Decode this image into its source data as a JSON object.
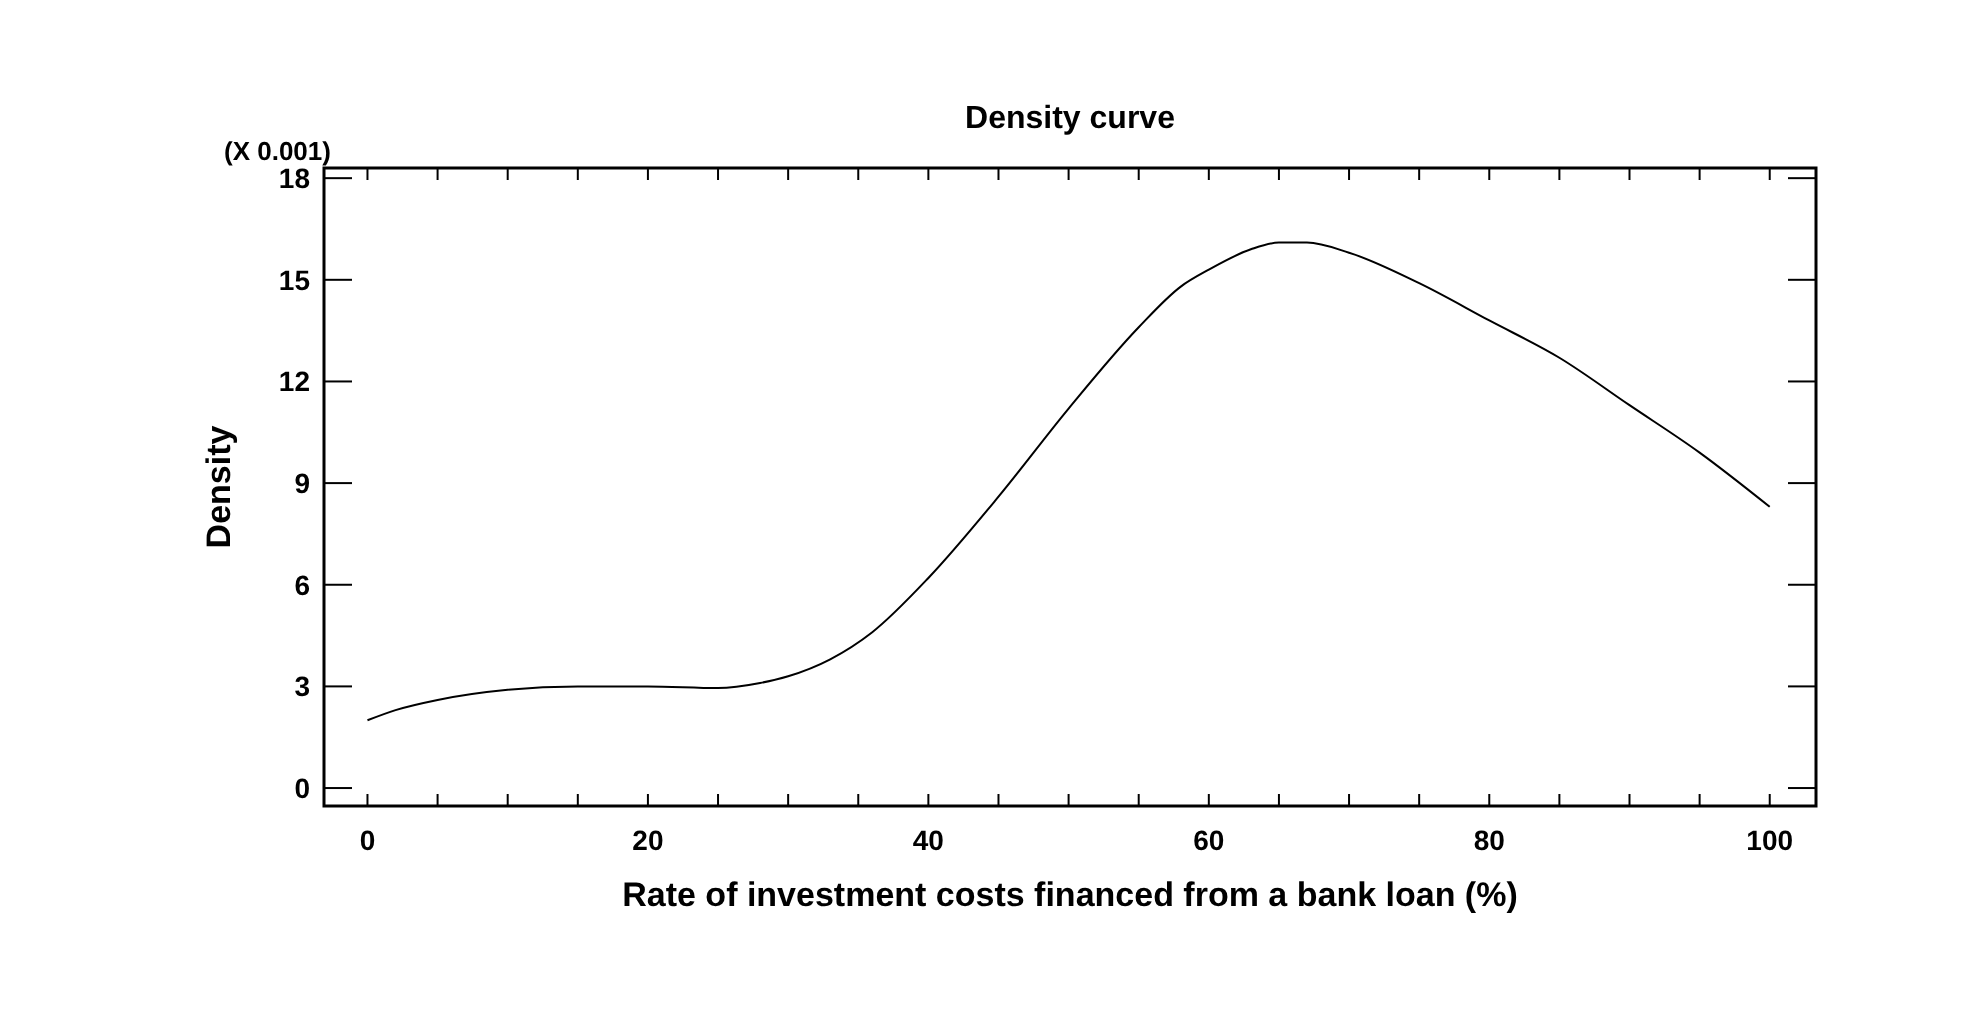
{
  "chart_data": {
    "type": "line",
    "title": "Density curve",
    "xlabel": "Rate of investment costs financed from a bank loan (%)",
    "ylabel": "Density",
    "annotations": [
      "(X 0.001)"
    ],
    "x": [
      0,
      2,
      5,
      10,
      15,
      20,
      25,
      28,
      30,
      33,
      36,
      40,
      45,
      50,
      55,
      58,
      60,
      63,
      65,
      67,
      70,
      75,
      80,
      85,
      90,
      95,
      100
    ],
    "series": [
      {
        "color": "#000000",
        "values": [
          2.0,
          2.3,
          2.6,
          2.9,
          3.0,
          3.0,
          2.95,
          3.1,
          3.3,
          3.8,
          4.6,
          6.2,
          8.6,
          11.2,
          13.6,
          14.8,
          15.3,
          15.9,
          16.1,
          16.1,
          15.8,
          14.9,
          13.8,
          12.7,
          11.3,
          9.9,
          8.3
        ]
      }
    ],
    "xlim": [
      -3.1,
      103.3
    ],
    "ylim": [
      -0.53,
      18.3
    ],
    "xticks": [
      0,
      {
        "value": 5,
        "label": null
      },
      {
        "value": 10,
        "label": null
      },
      {
        "value": 15,
        "label": null
      },
      20,
      {
        "value": 25,
        "label": null
      },
      {
        "value": 30,
        "label": null
      },
      {
        "value": 35,
        "label": null
      },
      40,
      {
        "value": 45,
        "label": null
      },
      {
        "value": 50,
        "label": null
      },
      {
        "value": 55,
        "label": null
      },
      60,
      {
        "value": 65,
        "label": null
      },
      {
        "value": 70,
        "label": null
      },
      {
        "value": 75,
        "label": null
      },
      80,
      {
        "value": 85,
        "label": null
      },
      {
        "value": 90,
        "label": null
      },
      {
        "value": 95,
        "label": null
      },
      100
    ],
    "yticks": [
      0,
      3,
      6,
      9,
      12,
      15,
      18
    ],
    "grid": false,
    "marker": "none",
    "line_style": "solid"
  }
}
